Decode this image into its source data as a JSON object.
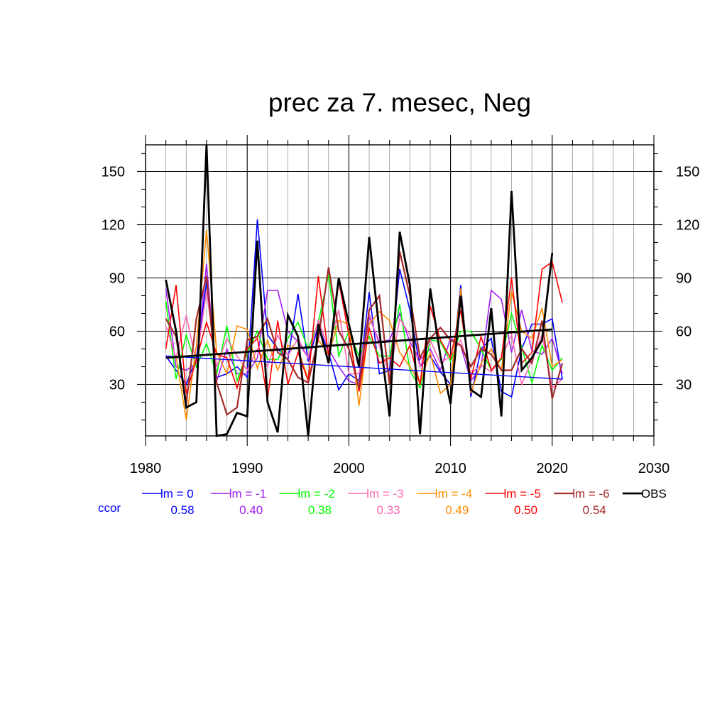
{
  "chart_data": {
    "type": "line",
    "title": "prec za 7. mesec, Neg",
    "xlabel": "",
    "ylabel": "",
    "xlim": [
      1980,
      2030
    ],
    "ylim": [
      1,
      165
    ],
    "x_ticks": [
      1980,
      1990,
      2000,
      2010,
      2020,
      2030
    ],
    "y_ticks": [
      30,
      60,
      90,
      120,
      150
    ],
    "grid": true,
    "legend_position": "bottom",
    "ccor_label": "ccor",
    "ccor_label_color": "#0000ff",
    "x": [
      1982,
      1983,
      1984,
      1985,
      1986,
      1987,
      1988,
      1989,
      1990,
      1991,
      1992,
      1993,
      1994,
      1995,
      1996,
      1997,
      1998,
      1999,
      2000,
      2001,
      2002,
      2003,
      2004,
      2005,
      2006,
      2007,
      2008,
      2009,
      2010,
      2011,
      2012,
      2013,
      2014,
      2015,
      2016,
      2017,
      2018,
      2019,
      2020,
      2021
    ],
    "series": [
      {
        "name": "lm = 0",
        "color": "#0000ff",
        "ccor": "0.58",
        "width": 1.6,
        "values": [
          46,
          38,
          30,
          45,
          88,
          34,
          36,
          40,
          34,
          123,
          58,
          50,
          44,
          81,
          43,
          63,
          48,
          27,
          36,
          32,
          82,
          36,
          38,
          95,
          72,
          40,
          46,
          37,
          30,
          86,
          23,
          50,
          56,
          26,
          23,
          50,
          64,
          64,
          67,
          33
        ]
      },
      {
        "name": "lm = -1",
        "color": "#a020f0",
        "ccor": "0.40",
        "width": 1.6,
        "values": [
          84,
          40,
          38,
          42,
          98,
          32,
          50,
          36,
          36,
          45,
          83,
          83,
          60,
          54,
          45,
          66,
          50,
          40,
          32,
          30,
          68,
          54,
          55,
          70,
          54,
          44,
          50,
          38,
          56,
          52,
          32,
          40,
          83,
          78,
          48,
          72,
          49,
          47,
          56,
          36
        ]
      },
      {
        "name": "lm = -2",
        "color": "#00ff00",
        "ccor": "0.38",
        "width": 1.6,
        "values": [
          77,
          33,
          58,
          40,
          53,
          36,
          63,
          32,
          48,
          60,
          44,
          44,
          56,
          65,
          50,
          65,
          92,
          46,
          60,
          46,
          57,
          46,
          46,
          75,
          38,
          28,
          55,
          54,
          43,
          60,
          60,
          50,
          38,
          44,
          70,
          51,
          31,
          52,
          38,
          45
        ]
      },
      {
        "name": "lm = -3",
        "color": "#ff69b4",
        "ccor": "0.33",
        "width": 1.6,
        "values": [
          63,
          45,
          69,
          42,
          83,
          40,
          56,
          46,
          38,
          50,
          40,
          58,
          46,
          56,
          45,
          66,
          50,
          72,
          36,
          36,
          70,
          52,
          35,
          67,
          58,
          40,
          55,
          42,
          46,
          55,
          36,
          41,
          37,
          45,
          58,
          30,
          44,
          58,
          28,
          33
        ]
      },
      {
        "name": "lm = -4",
        "color": "#ff8c00",
        "ccor": "0.49",
        "width": 1.6,
        "values": [
          45,
          46,
          10,
          52,
          117,
          48,
          36,
          63,
          61,
          39,
          55,
          38,
          52,
          50,
          33,
          55,
          47,
          66,
          64,
          18,
          64,
          71,
          66,
          48,
          40,
          31,
          48,
          25,
          30,
          84,
          25,
          42,
          50,
          38,
          82,
          60,
          56,
          73,
          40,
          44
        ]
      },
      {
        "name": "lm = -5",
        "color": "#ff0000",
        "ccor": "0.50",
        "width": 1.6,
        "values": [
          50,
          86,
          25,
          44,
          65,
          47,
          45,
          28,
          50,
          56,
          22,
          66,
          30,
          48,
          32,
          91,
          46,
          88,
          58,
          26,
          62,
          42,
          45,
          40,
          52,
          30,
          74,
          55,
          45,
          72,
          33,
          57,
          38,
          45,
          90,
          42,
          48,
          95,
          99,
          76
        ]
      },
      {
        "name": "lm = -6",
        "color": "#a52a2a",
        "ccor": "0.54",
        "width": 2.2,
        "values": [
          67,
          57,
          19,
          67,
          91,
          31,
          13,
          17,
          55,
          57,
          67,
          48,
          44,
          34,
          31,
          56,
          96,
          60,
          50,
          28,
          72,
          80,
          30,
          105,
          80,
          45,
          56,
          62,
          55,
          52,
          40,
          50,
          47,
          38,
          38,
          50,
          42,
          66,
          22,
          42
        ]
      },
      {
        "name": "OBS",
        "color": "#000000",
        "width": 2.8,
        "values": [
          89,
          60,
          17,
          20,
          166,
          1,
          2,
          14,
          12,
          111,
          20,
          3,
          69,
          57,
          1,
          64,
          42,
          90,
          64,
          40,
          113,
          60,
          12,
          116,
          86,
          2,
          84,
          46,
          19,
          80,
          27,
          23,
          73,
          12,
          139,
          38,
          45,
          55,
          104,
          null
        ]
      }
    ],
    "trend_lines": [
      {
        "color": "#0000ff",
        "width": 1.4,
        "x": [
          1982,
          2021
        ],
        "y": [
          46,
          33
        ]
      },
      {
        "color": "#000000",
        "width": 2.8,
        "x": [
          1982,
          2020
        ],
        "y": [
          45,
          61
        ]
      }
    ]
  }
}
